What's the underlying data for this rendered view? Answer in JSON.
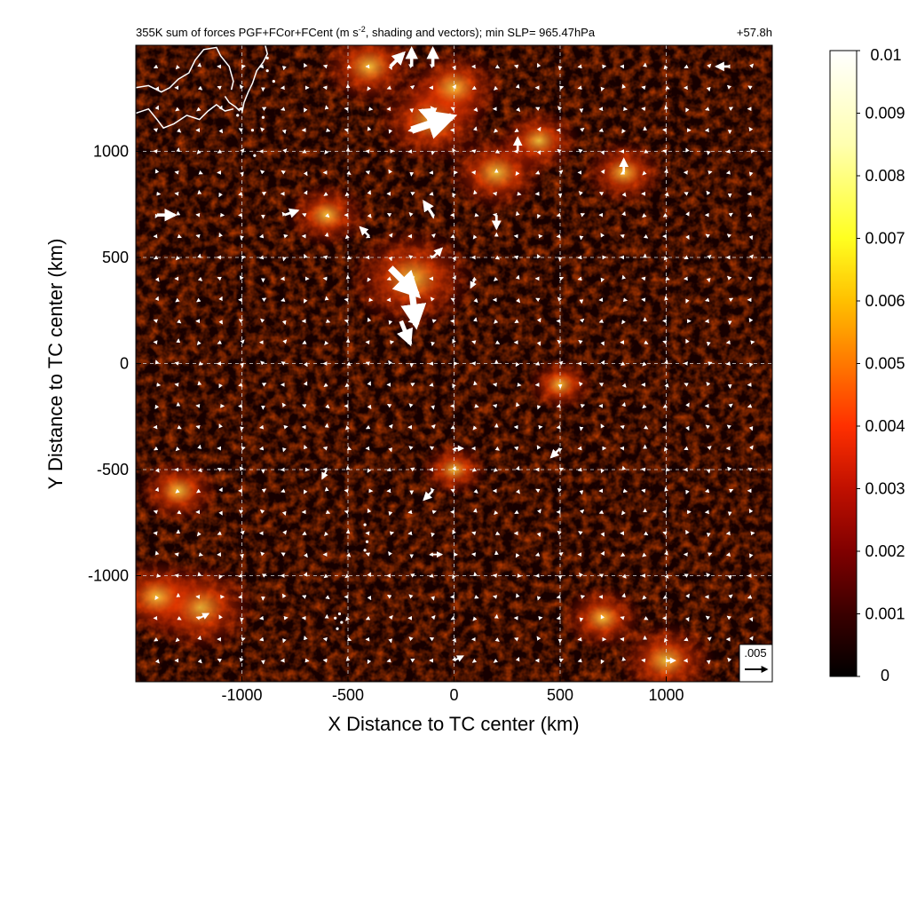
{
  "chart_data": {
    "type": "heatmap",
    "title": "355K sum of forces PGF+FCor+FCent (m s",
    "title_sup": "-2",
    "title_rest": ", shading and vectors); min SLP= 965.47hPa",
    "time_label": "+57.8h",
    "xlabel": "X Distance to TC center (km)",
    "ylabel": "Y Distance to TC center (km)",
    "xlim": [
      -1500,
      1500
    ],
    "ylim": [
      -1500,
      1500
    ],
    "xticks": [
      -1000,
      -500,
      0,
      500,
      1000
    ],
    "xtick_labels": [
      "-1000",
      "-500",
      "0",
      "500",
      "1000"
    ],
    "yticks": [
      -1000,
      -500,
      0,
      500,
      1000
    ],
    "ytick_labels": [
      "-1000",
      "-500",
      "0",
      "500",
      "1000"
    ],
    "grid": true,
    "reference_vector": {
      "label": ".005",
      "magnitude": 0.005
    },
    "colorbar": {
      "min": 0,
      "max": 0.01,
      "ticks": [
        0,
        0.001,
        0.002,
        0.003,
        0.004,
        0.005,
        0.006,
        0.007,
        0.008,
        0.009,
        0.01
      ],
      "tick_labels": [
        "0",
        "0.001",
        "0.002",
        "0.003",
        "0.004",
        "0.005",
        "0.006",
        "0.007",
        "0.008",
        "0.009",
        "0.01"
      ],
      "colormap": [
        "#000000",
        "#3a0000",
        "#800000",
        "#c01000",
        "#ff3000",
        "#ff7800",
        "#ffc000",
        "#ffff20",
        "#ffffb0",
        "#ffffff"
      ]
    },
    "field_hotspots": [
      {
        "x": -200,
        "y": 400,
        "value": 0.006
      },
      {
        "x": -100,
        "y": 1150,
        "value": 0.005
      },
      {
        "x": 0,
        "y": 1300,
        "value": 0.004
      },
      {
        "x": 200,
        "y": 900,
        "value": 0.004
      },
      {
        "x": 800,
        "y": 900,
        "value": 0.003
      },
      {
        "x": -1200,
        "y": -1150,
        "value": 0.005
      },
      {
        "x": -1400,
        "y": -1100,
        "value": 0.004
      },
      {
        "x": 1000,
        "y": -1400,
        "value": 0.004
      },
      {
        "x": -400,
        "y": 1400,
        "value": 0.004
      },
      {
        "x": 400,
        "y": 1050,
        "value": 0.003
      },
      {
        "x": -600,
        "y": 700,
        "value": 0.003
      },
      {
        "x": 0,
        "y": -500,
        "value": 0.002
      },
      {
        "x": 500,
        "y": -100,
        "value": 0.002
      },
      {
        "x": -1300,
        "y": -600,
        "value": 0.003
      },
      {
        "x": 700,
        "y": -1200,
        "value": 0.003
      }
    ],
    "vectors": [
      {
        "x": -300,
        "y": 450,
        "u": 0.006,
        "v": -0.006
      },
      {
        "x": -200,
        "y": 350,
        "u": 0.001,
        "v": -0.008
      },
      {
        "x": -250,
        "y": 200,
        "u": 0.002,
        "v": -0.005
      },
      {
        "x": -200,
        "y": 1100,
        "u": 0.009,
        "v": 0.003
      },
      {
        "x": -50,
        "y": 1150,
        "u": -0.005,
        "v": 0.002
      },
      {
        "x": -200,
        "y": 1400,
        "u": 0.0,
        "v": 0.004
      },
      {
        "x": -300,
        "y": 1400,
        "u": 0.003,
        "v": 0.003
      },
      {
        "x": -100,
        "y": 1400,
        "u": 0.0,
        "v": 0.004
      },
      {
        "x": -100,
        "y": 700,
        "u": -0.002,
        "v": 0.003
      },
      {
        "x": 200,
        "y": 700,
        "u": 0.0,
        "v": -0.003
      },
      {
        "x": 300,
        "y": 1000,
        "u": 0.0,
        "v": 0.003
      },
      {
        "x": 800,
        "y": 900,
        "u": 0.0,
        "v": 0.003
      },
      {
        "x": -1400,
        "y": 700,
        "u": 0.004,
        "v": 0.0
      },
      {
        "x": -800,
        "y": 700,
        "u": 0.003,
        "v": 0.001
      },
      {
        "x": 1300,
        "y": 1400,
        "u": -0.003,
        "v": 0.0
      },
      {
        "x": 500,
        "y": -400,
        "u": -0.002,
        "v": -0.002
      },
      {
        "x": -100,
        "y": -600,
        "u": -0.002,
        "v": -0.002
      },
      {
        "x": -100,
        "y": -900,
        "u": 0.002,
        "v": 0.0
      },
      {
        "x": 0,
        "y": -1400,
        "u": 0.002,
        "v": 0.001
      },
      {
        "x": -1200,
        "y": -1200,
        "u": 0.002,
        "v": 0.001
      },
      {
        "x": -600,
        "y": -500,
        "u": -0.001,
        "v": -0.002
      },
      {
        "x": 0,
        "y": -400,
        "u": 0.002,
        "v": 0.0
      },
      {
        "x": -100,
        "y": 500,
        "u": 0.002,
        "v": 0.002
      },
      {
        "x": -400,
        "y": 600,
        "u": -0.002,
        "v": 0.002
      },
      {
        "x": 100,
        "y": 400,
        "u": -0.001,
        "v": -0.002
      },
      {
        "x": 1000,
        "y": -1400,
        "u": 0.002,
        "v": 0.0
      }
    ],
    "coastline": [
      {
        "name": "coast-1",
        "points": [
          [
            -1500,
            1300
          ],
          [
            -1440,
            1310
          ],
          [
            -1380,
            1280
          ],
          [
            -1340,
            1300
          ],
          [
            -1300,
            1340
          ],
          [
            -1250,
            1370
          ],
          [
            -1220,
            1430
          ],
          [
            -1180,
            1480
          ],
          [
            -1120,
            1490
          ],
          [
            -1100,
            1450
          ],
          [
            -1060,
            1400
          ],
          [
            -1040,
            1330
          ],
          [
            -1050,
            1290
          ]
        ]
      },
      {
        "name": "coast-2",
        "points": [
          [
            -1500,
            1180
          ],
          [
            -1440,
            1200
          ],
          [
            -1400,
            1150
          ],
          [
            -1370,
            1110
          ],
          [
            -1320,
            1130
          ],
          [
            -1260,
            1170
          ],
          [
            -1200,
            1150
          ],
          [
            -1160,
            1190
          ],
          [
            -1120,
            1220
          ],
          [
            -1080,
            1190
          ],
          [
            -1040,
            1200
          ]
        ]
      },
      {
        "name": "coast-3",
        "points": [
          [
            -1000,
            1180
          ],
          [
            -990,
            1230
          ],
          [
            -970,
            1280
          ],
          [
            -950,
            1320
          ],
          [
            -930,
            1380
          ],
          [
            -900,
            1420
          ],
          [
            -880,
            1460
          ],
          [
            -890,
            1500
          ]
        ]
      },
      {
        "name": "coast-4",
        "points": [
          [
            -1080,
            1260
          ],
          [
            -1060,
            1230
          ],
          [
            -1030,
            1210
          ],
          [
            -1010,
            1190
          ]
        ]
      }
    ],
    "islands": [
      [
        -560,
        -1200
      ],
      [
        -540,
        -1180
      ],
      [
        -420,
        -880
      ],
      [
        -410,
        -840
      ],
      [
        -420,
        -760
      ],
      [
        -940,
        980
      ],
      [
        -900,
        1160
      ],
      [
        -950,
        1100
      ],
      [
        -1020,
        1170
      ],
      [
        -880,
        1440
      ],
      [
        -880,
        1380
      ],
      [
        -850,
        1330
      ],
      [
        -550,
        -1250
      ],
      [
        -530,
        -1220
      ]
    ]
  }
}
